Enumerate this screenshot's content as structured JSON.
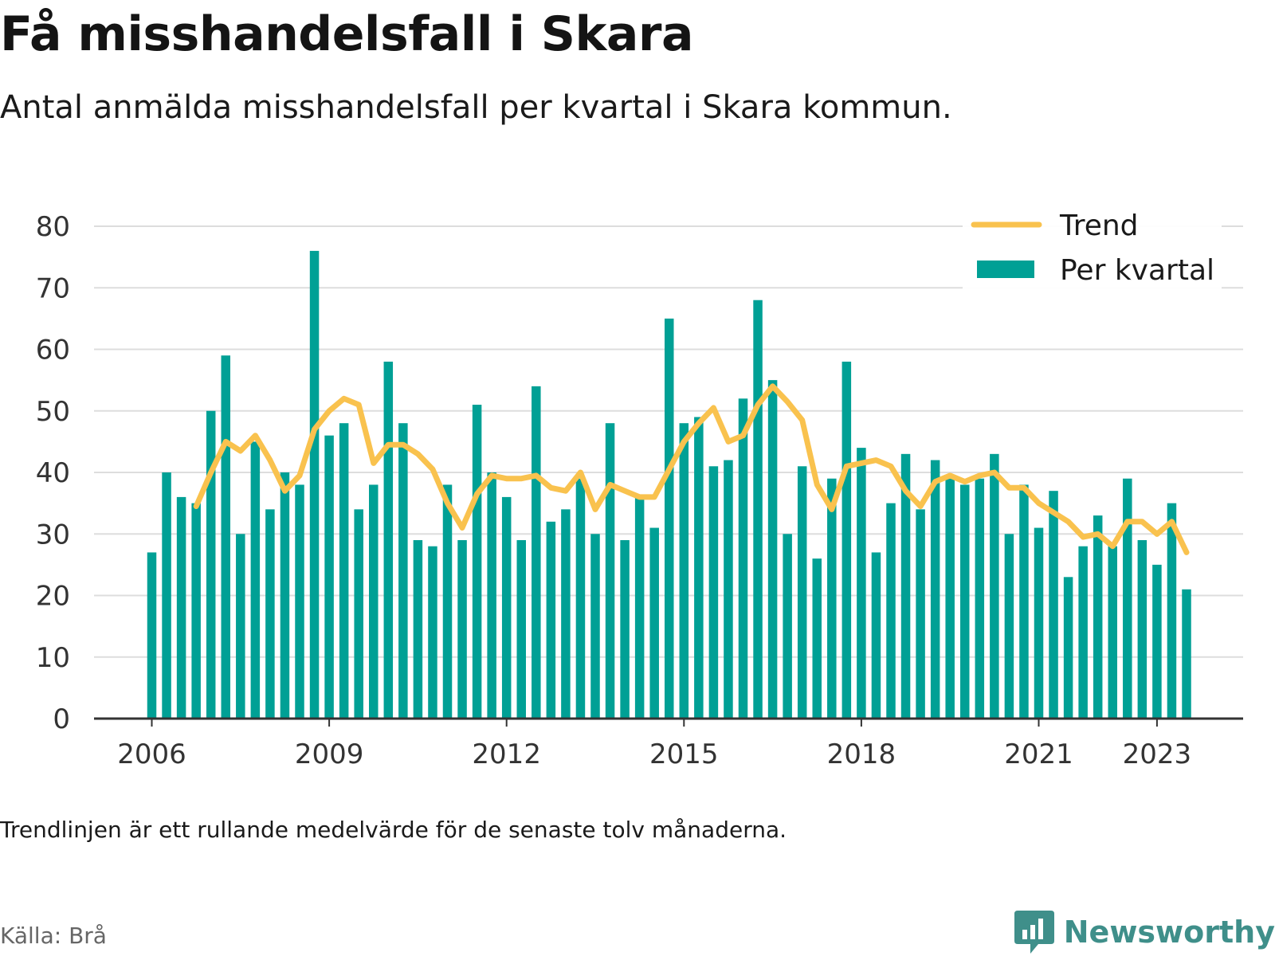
{
  "header": {
    "title": "Få misshandelsfall i Skara",
    "subtitle": "Antal anmälda misshandelsfall per kvartal i Skara kommun."
  },
  "footer": {
    "note": "Trendlinjen är ett rullande medelvärde för de senaste tolv månaderna.",
    "source": "Källa: Brå",
    "brand": "Newsworthy"
  },
  "colors": {
    "bar": "#00a095",
    "trend": "#f9c24e",
    "grid": "#dddddd",
    "axis": "#333333",
    "brand": "#3f8f8a"
  },
  "chart_data": {
    "type": "bar",
    "title": "Få misshandelsfall i Skara",
    "subtitle": "Antal anmälda misshandelsfall per kvartal i Skara kommun.",
    "xlabel": "",
    "ylabel": "",
    "ylim": [
      0,
      80
    ],
    "yticks": [
      "0",
      "10",
      "20",
      "30",
      "40",
      "50",
      "60",
      "70",
      "80"
    ],
    "xticks": [
      {
        "label": "2006",
        "quarter": "2006Q1"
      },
      {
        "label": "2009",
        "quarter": "2009Q1"
      },
      {
        "label": "2012",
        "quarter": "2012Q1"
      },
      {
        "label": "2015",
        "quarter": "2015Q1"
      },
      {
        "label": "2018",
        "quarter": "2018Q1"
      },
      {
        "label": "2021",
        "quarter": "2021Q1"
      },
      {
        "label": "2023",
        "quarter": "2023Q1"
      }
    ],
    "grid": true,
    "legend": {
      "position": "top-right",
      "entries": [
        {
          "label": "Trend",
          "kind": "line"
        },
        {
          "label": "Per kvartal",
          "kind": "bar"
        }
      ]
    },
    "categories": [
      "2006Q1",
      "2006Q2",
      "2006Q3",
      "2006Q4",
      "2007Q1",
      "2007Q2",
      "2007Q3",
      "2007Q4",
      "2008Q1",
      "2008Q2",
      "2008Q3",
      "2008Q4",
      "2009Q1",
      "2009Q2",
      "2009Q3",
      "2009Q4",
      "2010Q1",
      "2010Q2",
      "2010Q3",
      "2010Q4",
      "2011Q1",
      "2011Q2",
      "2011Q3",
      "2011Q4",
      "2012Q1",
      "2012Q2",
      "2012Q3",
      "2012Q4",
      "2013Q1",
      "2013Q2",
      "2013Q3",
      "2013Q4",
      "2014Q1",
      "2014Q2",
      "2014Q3",
      "2014Q4",
      "2015Q1",
      "2015Q2",
      "2015Q3",
      "2015Q4",
      "2016Q1",
      "2016Q2",
      "2016Q3",
      "2016Q4",
      "2017Q1",
      "2017Q2",
      "2017Q3",
      "2017Q4",
      "2018Q1",
      "2018Q2",
      "2018Q3",
      "2018Q4",
      "2019Q1",
      "2019Q2",
      "2019Q3",
      "2019Q4",
      "2020Q1",
      "2020Q2",
      "2020Q3",
      "2020Q4",
      "2021Q1",
      "2021Q2",
      "2021Q3",
      "2021Q4",
      "2022Q1",
      "2022Q2",
      "2022Q3",
      "2022Q4",
      "2023Q1",
      "2023Q2",
      "2023Q3"
    ],
    "series": [
      {
        "name": "Per kvartal",
        "type": "bar",
        "values": [
          27,
          40,
          36,
          35,
          50,
          59,
          30,
          45,
          34,
          40,
          38,
          76,
          46,
          48,
          34,
          38,
          58,
          48,
          29,
          28,
          38,
          29,
          51,
          40,
          36,
          29,
          54,
          32,
          34,
          39,
          30,
          48,
          29,
          36,
          31,
          65,
          48,
          49,
          41,
          42,
          52,
          68,
          55,
          30,
          41,
          26,
          39,
          58,
          44,
          27,
          35,
          43,
          34,
          42,
          39,
          38,
          39,
          43,
          30,
          38,
          31,
          37,
          23,
          28,
          33,
          28,
          39,
          29,
          25,
          35,
          21
        ]
      },
      {
        "name": "Trend",
        "type": "line",
        "values": [
          null,
          null,
          null,
          34.5,
          40,
          45,
          43.5,
          46,
          42,
          37,
          39.5,
          47,
          50,
          52,
          51,
          41.5,
          44.5,
          44.5,
          43,
          40.5,
          35,
          31,
          36.5,
          39.5,
          39,
          39,
          39.5,
          37.5,
          37,
          40,
          34,
          38,
          37,
          36,
          36,
          40.5,
          45,
          48,
          50.5,
          45,
          46,
          51,
          54,
          51.5,
          48.5,
          38,
          34,
          41,
          41.5,
          42,
          41,
          37,
          34.5,
          38.5,
          39.5,
          38.5,
          39.5,
          40,
          37.5,
          37.5,
          35,
          33.5,
          32,
          29.5,
          30,
          28,
          32,
          32,
          30,
          32,
          27
        ]
      }
    ]
  }
}
